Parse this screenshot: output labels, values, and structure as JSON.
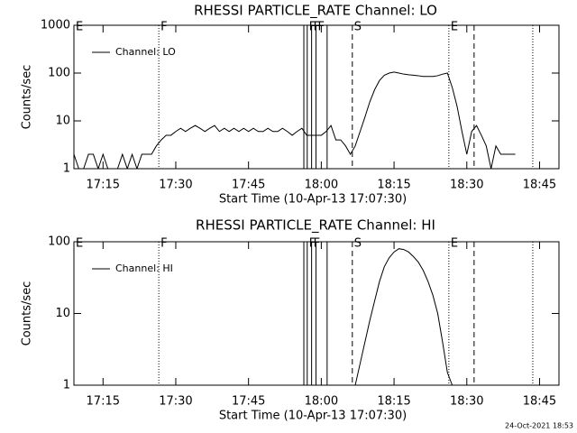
{
  "chart_data": [
    {
      "type": "line",
      "title": "RHESSI PARTICLE_RATE Channel: LO",
      "xlabel": "Start Time (10-Apr-13 17:07:30)",
      "ylabel": "Counts/sec",
      "x": [
        9,
        10,
        11,
        12,
        13,
        14,
        15,
        16,
        17,
        18,
        19,
        20,
        21,
        22,
        23,
        24,
        25,
        26,
        27,
        28,
        29,
        30,
        31,
        32,
        33,
        34,
        35,
        36,
        37,
        38,
        39,
        40,
        41,
        42,
        43,
        44,
        45,
        46,
        47,
        48,
        49,
        50,
        51,
        52,
        53,
        54,
        55,
        56,
        57,
        58,
        59,
        60,
        61,
        62,
        63,
        64,
        65,
        66,
        67,
        68,
        69,
        70,
        71,
        72,
        73,
        74,
        75,
        76,
        77,
        78,
        79,
        80,
        81,
        82,
        83,
        84,
        85,
        86,
        87,
        88,
        89,
        90,
        91,
        92,
        93,
        94,
        95,
        96,
        97,
        98,
        99,
        100
      ],
      "series": [
        {
          "name": "Channel: LO",
          "color": "#000000",
          "values": [
            2,
            1,
            1,
            2,
            2,
            1,
            2,
            1,
            1,
            1,
            2,
            1,
            2,
            1,
            2,
            2,
            2,
            3,
            4,
            5,
            5,
            6,
            7,
            6,
            7,
            8,
            7,
            6,
            7,
            8,
            6,
            7,
            6,
            7,
            6,
            7,
            6,
            7,
            6,
            6,
            7,
            6,
            6,
            7,
            6,
            5,
            6,
            7,
            5,
            5,
            5,
            5,
            6,
            8,
            4,
            4,
            3,
            2,
            3,
            6,
            12,
            25,
            45,
            70,
            90,
            100,
            105,
            100,
            95,
            92,
            90,
            88,
            85,
            85,
            85,
            88,
            95,
            100,
            50,
            20,
            6,
            2,
            6,
            8,
            5,
            3,
            1,
            3,
            2,
            2,
            2,
            2
          ]
        }
      ],
      "xlim": [
        9,
        109
      ],
      "xticks": [
        {
          "value": 15,
          "label": "17:15"
        },
        {
          "value": 30,
          "label": "17:30"
        },
        {
          "value": 45,
          "label": "17:45"
        },
        {
          "value": 60,
          "label": "18:00"
        },
        {
          "value": 75,
          "label": "18:15"
        },
        {
          "value": 90,
          "label": "18:30"
        },
        {
          "value": 105,
          "label": "18:45"
        }
      ],
      "ylim": [
        1,
        1000
      ],
      "yticks": [
        1,
        10,
        100,
        1000
      ],
      "log_y": true,
      "legend": "upper left",
      "markers": [
        {
          "x": 9,
          "style": "solid",
          "label": "E"
        },
        {
          "x": 26.5,
          "style": "dotted",
          "label": "F"
        },
        {
          "x": 56.4,
          "style": "solid"
        },
        {
          "x": 57.1,
          "style": "solid",
          "label": "F"
        },
        {
          "x": 58.0,
          "style": "solid",
          "label": "F"
        },
        {
          "x": 58.9,
          "style": "solid",
          "label": "F"
        },
        {
          "x": 61.2,
          "style": "solid"
        },
        {
          "x": 66.4,
          "style": "dashed",
          "label": "S"
        },
        {
          "x": 86.3,
          "style": "dotted",
          "label": "E"
        },
        {
          "x": 91.5,
          "style": "dashed"
        },
        {
          "x": 103.6,
          "style": "dotted"
        }
      ]
    },
    {
      "type": "line",
      "title": "RHESSI PARTICLE_RATE Channel: HI",
      "xlabel": "Start Time (10-Apr-13 17:07:30)",
      "ylabel": "Counts/sec",
      "x": [
        67,
        68,
        69,
        70,
        71,
        72,
        73,
        74,
        75,
        76,
        77,
        78,
        79,
        80,
        81,
        82,
        83,
        84,
        85,
        86,
        87
      ],
      "series": [
        {
          "name": "Channel: HI",
          "color": "#000000",
          "values": [
            1,
            2,
            4,
            8,
            15,
            28,
            45,
            60,
            72,
            80,
            78,
            72,
            62,
            52,
            40,
            28,
            18,
            10,
            4,
            1.5,
            1
          ]
        }
      ],
      "xlim": [
        9,
        109
      ],
      "xticks": [
        {
          "value": 15,
          "label": "17:15"
        },
        {
          "value": 30,
          "label": "17:30"
        },
        {
          "value": 45,
          "label": "17:45"
        },
        {
          "value": 60,
          "label": "18:00"
        },
        {
          "value": 75,
          "label": "18:15"
        },
        {
          "value": 90,
          "label": "18:30"
        },
        {
          "value": 105,
          "label": "18:45"
        }
      ],
      "ylim": [
        1,
        100
      ],
      "yticks": [
        1,
        10,
        100
      ],
      "log_y": true,
      "legend": "upper left",
      "markers": [
        {
          "x": 9,
          "style": "solid",
          "label": "E"
        },
        {
          "x": 26.5,
          "style": "dotted",
          "label": "F"
        },
        {
          "x": 56.4,
          "style": "solid"
        },
        {
          "x": 57.1,
          "style": "solid",
          "label": "F"
        },
        {
          "x": 58.0,
          "style": "solid",
          "label": "F"
        },
        {
          "x": 58.9,
          "style": "solid"
        },
        {
          "x": 61.2,
          "style": "solid"
        },
        {
          "x": 66.4,
          "style": "dashed",
          "label": "S"
        },
        {
          "x": 86.3,
          "style": "dotted",
          "label": "E"
        },
        {
          "x": 91.5,
          "style": "dashed"
        },
        {
          "x": 103.6,
          "style": "dotted"
        }
      ]
    }
  ],
  "footer": "24-Oct-2021 18:53"
}
